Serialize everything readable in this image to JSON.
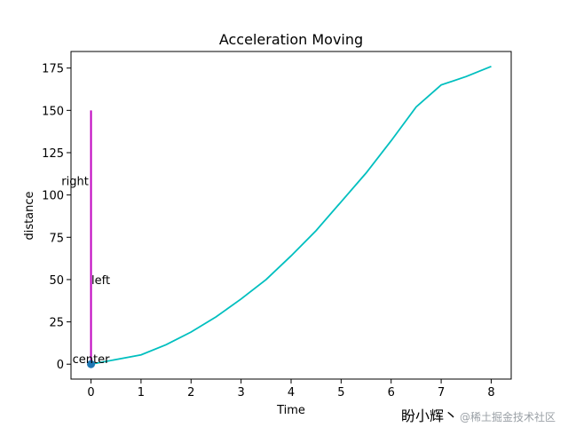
{
  "chart_data": {
    "type": "line",
    "title": "Acceleration Moving",
    "xlabel": "Time",
    "ylabel": "distance",
    "xlim": [
      -0.4,
      8.4
    ],
    "ylim": [
      -8.8,
      184.8
    ],
    "xticks": [
      0,
      1,
      2,
      3,
      4,
      5,
      6,
      7,
      8
    ],
    "yticks": [
      0,
      25,
      50,
      75,
      100,
      125,
      150,
      175
    ],
    "grid": false,
    "series": [
      {
        "type": "line",
        "color": "#00bfbf",
        "x": [
          0,
          0.5,
          1,
          1.5,
          2,
          2.5,
          3,
          3.5,
          4,
          4.5,
          5,
          5.5,
          6,
          6.5,
          7,
          7.5,
          8
        ],
        "y": [
          0,
          2.75,
          5.5,
          11.5,
          19,
          28,
          38.5,
          50,
          64,
          79,
          96,
          113,
          132,
          152,
          165,
          170,
          176
        ]
      },
      {
        "type": "vline",
        "color": "#bf00bf",
        "x": [
          0,
          0
        ],
        "y": [
          0,
          150
        ]
      },
      {
        "type": "point",
        "color": "#1f77b4",
        "x": [
          0
        ],
        "y": [
          0
        ]
      }
    ],
    "annotations": [
      {
        "text": "center",
        "x": 0,
        "y": 0
      },
      {
        "text": "left",
        "x": 0,
        "y": 50
      },
      {
        "text": "right",
        "x": 0,
        "y": 100
      }
    ]
  },
  "watermark": {
    "main": "盼小辉丶",
    "sub": "@稀土掘金技术社区"
  }
}
